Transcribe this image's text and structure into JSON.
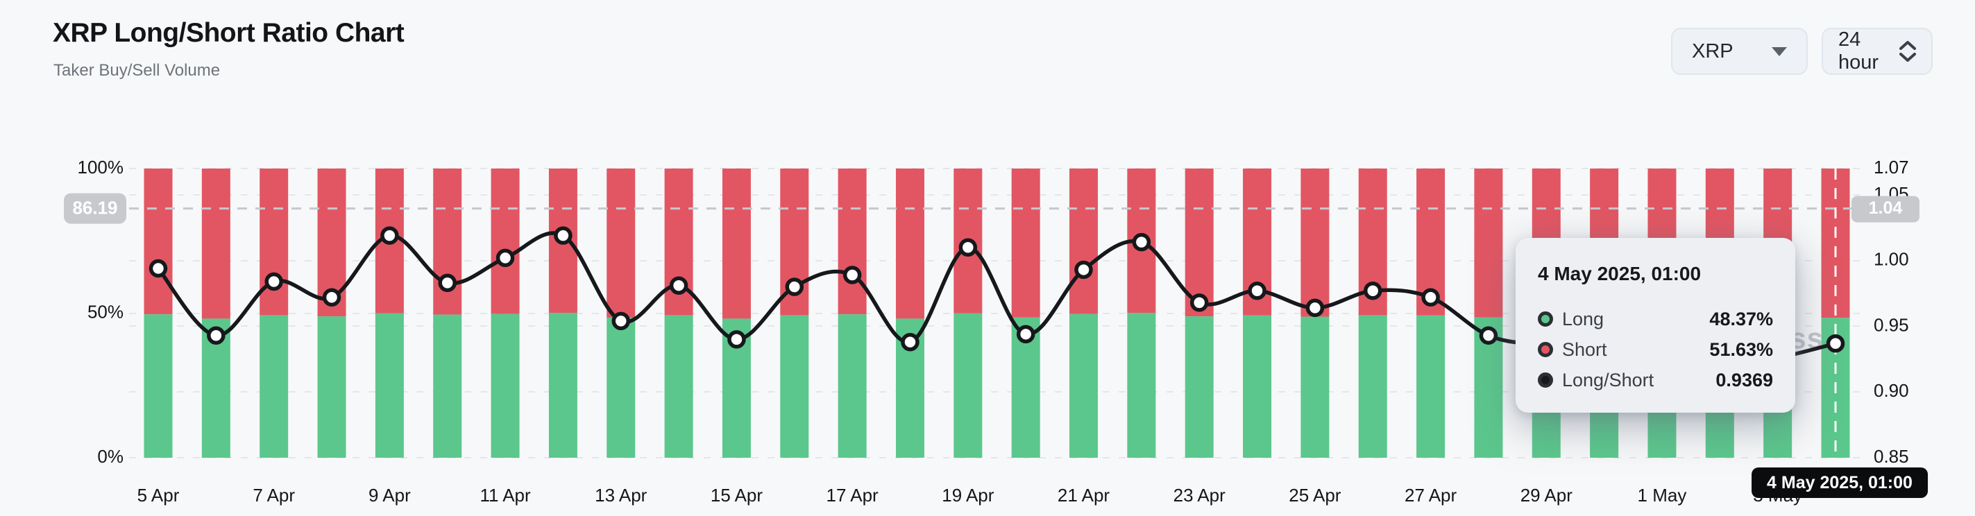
{
  "header": {
    "title": "XRP Long/Short Ratio Chart",
    "subtitle": "Taker Buy/Sell Volume",
    "coin_select": {
      "value": "XRP"
    },
    "interval_select": {
      "value": "24 hour"
    }
  },
  "watermark": "coinglass",
  "colors": {
    "long_green": "#5bc78c",
    "short_red": "#e25663",
    "line_black": "#16181c",
    "grid": "#e5e6e9",
    "crosshair": "#c6c8cc",
    "badge_bg": "#c7c9cd",
    "axis_text": "#141619"
  },
  "chart_data": {
    "type": "bar",
    "subtype": "stacked-percent-bars-with-ratio-line",
    "title": "XRP Long/Short Ratio",
    "categories": [
      "5 Apr",
      "6 Apr",
      "7 Apr",
      "8 Apr",
      "9 Apr",
      "10 Apr",
      "11 Apr",
      "12 Apr",
      "13 Apr",
      "14 Apr",
      "15 Apr",
      "16 Apr",
      "17 Apr",
      "18 Apr",
      "19 Apr",
      "20 Apr",
      "21 Apr",
      "22 Apr",
      "23 Apr",
      "24 Apr",
      "25 Apr",
      "26 Apr",
      "27 Apr",
      "28 Apr",
      "29 Apr",
      "30 Apr",
      "1 May",
      "2 May",
      "3 May",
      "4 May"
    ],
    "x_tick_every": 2,
    "series": [
      {
        "name": "Long",
        "type": "bar",
        "color": "#5bc78c",
        "values": [
          49.6,
          48.1,
          49.3,
          48.9,
          50.0,
          49.5,
          49.7,
          50.1,
          48.4,
          49.3,
          48.1,
          49.3,
          49.6,
          48.1,
          50.0,
          48.5,
          49.7,
          50.1,
          48.9,
          49.2,
          48.8,
          49.3,
          49.2,
          48.5,
          48.3,
          48.1,
          48.0,
          47.9,
          48.1,
          48.37
        ]
      },
      {
        "name": "Short",
        "type": "bar",
        "color": "#e25663",
        "values": [
          50.4,
          51.9,
          50.7,
          51.1,
          50.0,
          50.5,
          50.3,
          49.9,
          51.6,
          50.7,
          51.9,
          50.7,
          50.4,
          51.9,
          50.0,
          51.5,
          50.3,
          49.9,
          51.1,
          50.8,
          51.2,
          50.7,
          50.8,
          51.5,
          51.7,
          51.9,
          52.0,
          52.1,
          51.9,
          51.63
        ]
      },
      {
        "name": "Long/Short",
        "type": "line",
        "color": "#16181c",
        "yaxis": "right",
        "values": [
          0.994,
          0.943,
          0.984,
          0.972,
          1.019,
          0.983,
          1.002,
          1.019,
          0.954,
          0.981,
          0.94,
          0.98,
          0.989,
          0.938,
          1.01,
          0.944,
          0.993,
          1.014,
          0.968,
          0.977,
          0.964,
          0.977,
          0.972,
          0.943,
          0.935,
          0.928,
          0.924,
          0.92,
          0.926,
          0.9369
        ]
      }
    ],
    "left_axis": {
      "min": 0,
      "max": 100,
      "ticks": [
        {
          "v": 0,
          "label": "0%"
        },
        {
          "v": 50,
          "label": "50%"
        },
        {
          "v": 100,
          "label": "100%"
        }
      ]
    },
    "right_axis": {
      "min": 0.85,
      "max": 1.07,
      "ticks": [
        {
          "v": 0.85,
          "label": "0.85"
        },
        {
          "v": 0.9,
          "label": "0.90"
        },
        {
          "v": 0.95,
          "label": "0.95"
        },
        {
          "v": 1.0,
          "label": "1.00"
        },
        {
          "v": 1.05,
          "label": "1.05"
        },
        {
          "v": 1.07,
          "label": "1.07"
        }
      ]
    },
    "grid_dashed": true,
    "legend_position": "none"
  },
  "crosshair": {
    "left_badge": "86.19",
    "right_badge": "1.04",
    "x_badge": "4 May 2025, 01:00",
    "snapped_category": "4 May"
  },
  "tooltip": {
    "title": "4 May 2025, 01:00",
    "rows": [
      {
        "label": "Long",
        "value": "48.37%",
        "color": "#5bc78c"
      },
      {
        "label": "Short",
        "value": "51.63%",
        "color": "#e25663"
      },
      {
        "label": "Long/Short",
        "value": "0.9369",
        "color": "#16181c"
      }
    ]
  }
}
